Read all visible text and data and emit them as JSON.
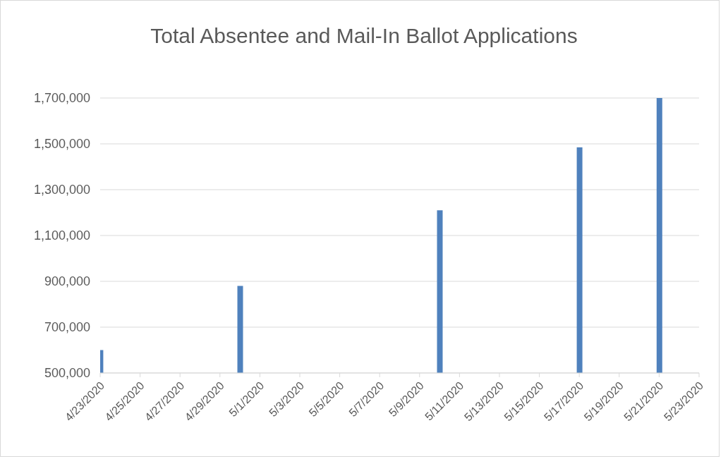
{
  "chart_data": {
    "type": "bar",
    "title": "Total Absentee and Mail-In Ballot Applications",
    "x": [
      "2020-04-23",
      "2020-04-30",
      "2020-05-10",
      "2020-05-17",
      "2020-05-21"
    ],
    "values": [
      600000,
      880000,
      1210000,
      1485000,
      1700000
    ],
    "color": "#4f81bd",
    "xlim": [
      "2020-04-23",
      "2020-05-23"
    ],
    "xticks": [
      {
        "value": "2020-04-23",
        "label": "4/23/2020"
      },
      {
        "value": "2020-04-25",
        "label": "4/25/2020"
      },
      {
        "value": "2020-04-27",
        "label": "4/27/2020"
      },
      {
        "value": "2020-04-29",
        "label": "4/29/2020"
      },
      {
        "value": "2020-05-01",
        "label": "5/1/2020"
      },
      {
        "value": "2020-05-03",
        "label": "5/3/2020"
      },
      {
        "value": "2020-05-05",
        "label": "5/5/2020"
      },
      {
        "value": "2020-05-07",
        "label": "5/7/2020"
      },
      {
        "value": "2020-05-09",
        "label": "5/9/2020"
      },
      {
        "value": "2020-05-11",
        "label": "5/11/2020"
      },
      {
        "value": "2020-05-13",
        "label": "5/13/2020"
      },
      {
        "value": "2020-05-15",
        "label": "5/15/2020"
      },
      {
        "value": "2020-05-17",
        "label": "5/17/2020"
      },
      {
        "value": "2020-05-19",
        "label": "5/19/2020"
      },
      {
        "value": "2020-05-21",
        "label": "5/21/2020"
      },
      {
        "value": "2020-05-23",
        "label": "5/23/2020"
      }
    ],
    "ylim": [
      500000,
      1700000
    ],
    "yticks": [
      {
        "value": 500000,
        "label": "500,000"
      },
      {
        "value": 700000,
        "label": "700,000"
      },
      {
        "value": 900000,
        "label": "900,000"
      },
      {
        "value": 1100000,
        "label": "1,100,000"
      },
      {
        "value": 1300000,
        "label": "1,300,000"
      },
      {
        "value": 1500000,
        "label": "1,500,000"
      },
      {
        "value": 1700000,
        "label": "1,700,000"
      }
    ],
    "grid": "y"
  }
}
